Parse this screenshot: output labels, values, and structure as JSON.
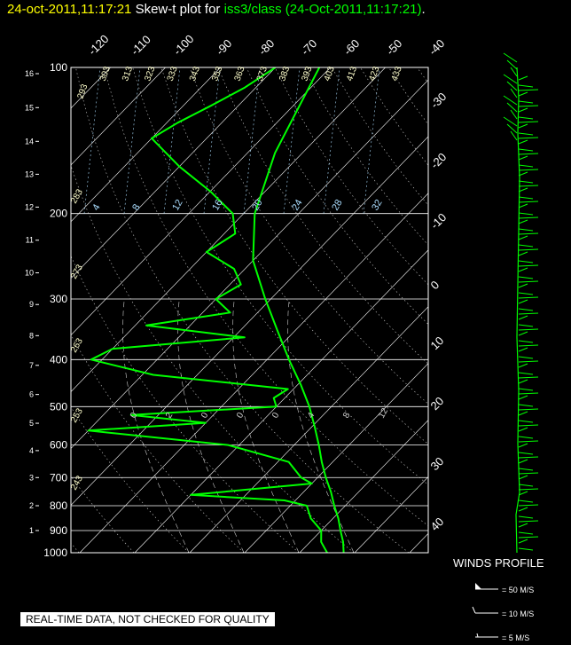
{
  "title": {
    "timestamp": "24-oct-2011,11:17:21",
    "middle": "Skew-t plot for",
    "source": "iss3/class (24-Oct-2011,11:17:21)",
    "end": "."
  },
  "colors": {
    "background": "#000000",
    "timestamp": "#ffff00",
    "trace": "#00ff00",
    "grid": "#ffffff",
    "adiabat_label": "#ffffcc",
    "mixing_label": "#aaddff"
  },
  "chart_data": {
    "type": "line",
    "title": "Skew-t plot for iss3/class (24-Oct-2011,11:17:21)",
    "xlabel": "",
    "ylabel": "",
    "y_scale": "log",
    "ylim": [
      1000,
      100
    ],
    "grid": true,
    "pressure_ticks": [
      "100",
      "200",
      "300",
      "400",
      "500",
      "600",
      "700",
      "800",
      "900",
      "1000"
    ],
    "pressure_values": [
      100,
      200,
      300,
      400,
      500,
      600,
      700,
      800,
      900,
      1000
    ],
    "height_ticks": [
      "1",
      "2",
      "3",
      "4",
      "5",
      "6",
      "7",
      "8",
      "9",
      "10",
      "11",
      "12",
      "13",
      "14",
      "15",
      "16"
    ],
    "height_values": [
      1,
      2,
      3,
      4,
      5,
      6,
      7,
      8,
      9,
      10,
      11,
      12,
      13,
      14,
      15,
      16
    ],
    "temp_ticks_top": [
      "-120",
      "-110",
      "-100",
      "-90",
      "-80",
      "-70",
      "-60",
      "-50",
      "-40"
    ],
    "temp_ticks_right": [
      "-30",
      "-20",
      "-10",
      "0",
      "10",
      "20",
      "30",
      "40"
    ],
    "dry_adiabat_labels": [
      "243",
      "253",
      "263",
      "273",
      "283",
      "293",
      "303",
      "313",
      "323",
      "333",
      "343",
      "353",
      "363",
      "373",
      "383",
      "393",
      "403",
      "413",
      "423",
      "433"
    ],
    "mixing_ratio_labels": [
      "4",
      "8",
      "12",
      "16",
      "20",
      "24",
      "28",
      "32"
    ],
    "lower_labels": [
      "0",
      "2",
      "0",
      "0",
      "0",
      "4",
      "8",
      "12"
    ],
    "series": [
      {
        "name": "",
        "kind": "temperature",
        "pressure": [
          1000,
          950,
          900,
          850,
          800,
          750,
          700,
          650,
          600,
          550,
          500,
          450,
          400,
          350,
          300,
          250,
          200,
          150,
          100
        ],
        "temp": [
          18,
          16,
          13.5,
          11,
          8,
          5,
          1.5,
          -2,
          -5.5,
          -9.5,
          -14,
          -19.5,
          -26,
          -33,
          -41,
          -50,
          -58,
          -65,
          -72
        ]
      },
      {
        "name": "",
        "kind": "dewpoint",
        "pressure": [
          1000,
          950,
          900,
          850,
          800,
          780,
          760,
          720,
          700,
          650,
          600,
          560,
          540,
          520,
          500,
          480,
          460,
          430,
          400,
          380,
          360,
          340,
          320,
          300,
          280,
          260,
          240,
          220,
          200,
          180,
          160,
          140,
          130,
          120,
          110,
          100
        ],
        "dewpoint": [
          15,
          12,
          10,
          6,
          3,
          -2,
          -20,
          0,
          -3,
          -8,
          -22,
          -50,
          -30,
          -45,
          -20,
          -22,
          -21,
          -48,
          -62,
          -60,
          -38,
          -58,
          -45,
          -50,
          -48,
          -52,
          -60,
          -58,
          -62,
          -70,
          -80,
          -90,
          -88,
          -85,
          -82,
          -80
        ]
      }
    ]
  },
  "winds": {
    "label": "WINDS PROFILE",
    "legend": [
      {
        "label": "= 50 M/S",
        "kind": "pennant"
      },
      {
        "label": "= 10 M/S",
        "kind": "full-barb"
      },
      {
        "label": "= 5 M/S",
        "kind": "half-barb"
      }
    ]
  },
  "disclaimer": "REAL-TIME DATA, NOT CHECKED FOR QUALITY"
}
